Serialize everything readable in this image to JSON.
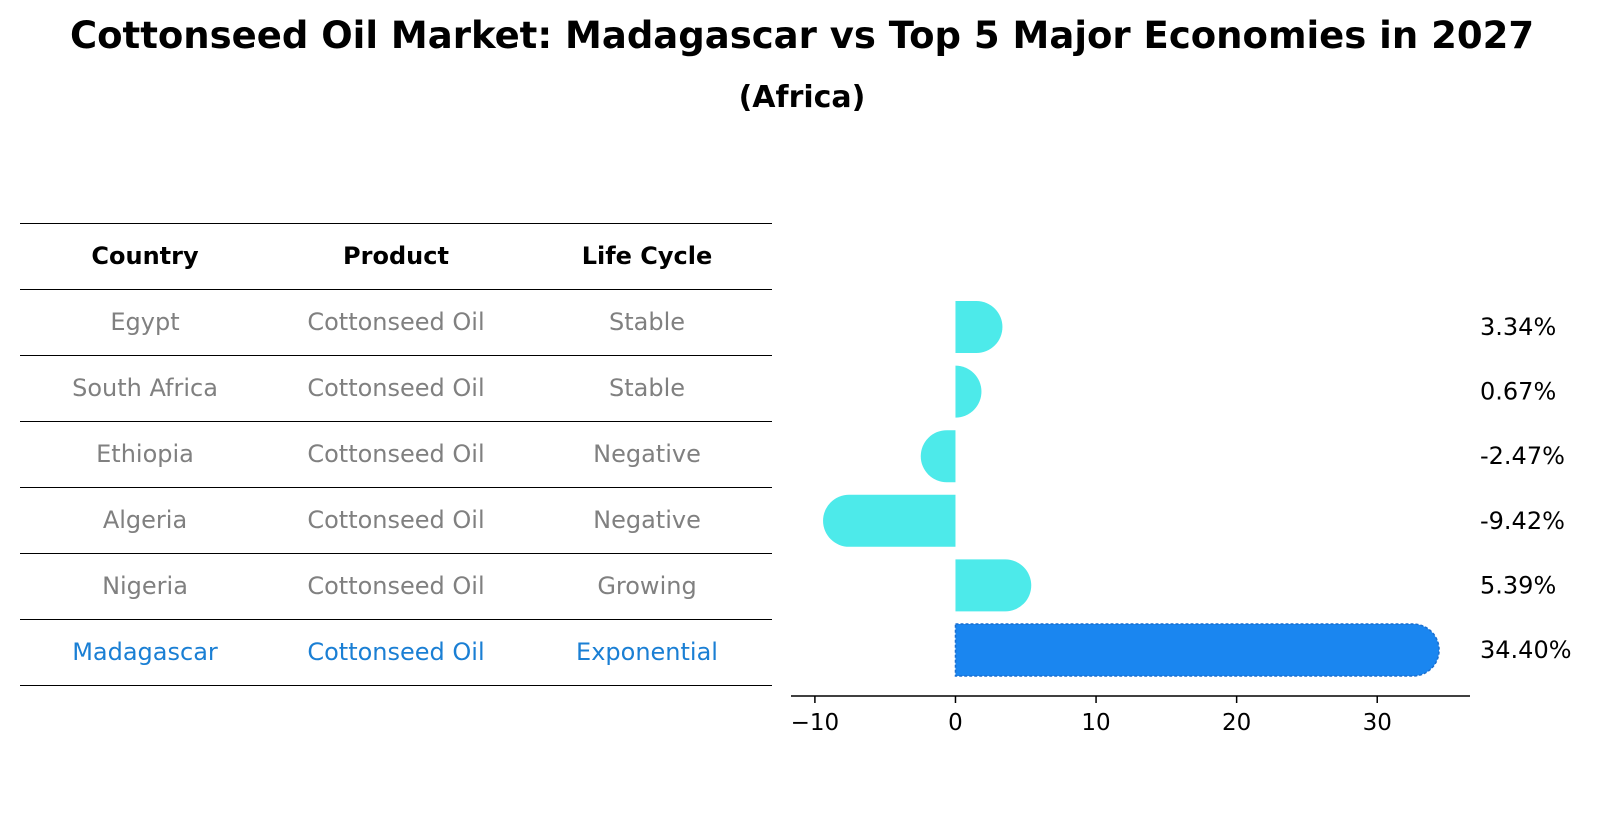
{
  "title": "Cottonseed Oil Market: Madagascar vs Top 5 Major Economies in 2027",
  "subtitle": "(Africa)",
  "table": {
    "headers": [
      "Country",
      "Product",
      "Life Cycle"
    ],
    "rows": [
      {
        "country": "Egypt",
        "product": "Cottonseed Oil",
        "life_cycle": "Stable"
      },
      {
        "country": "South Africa",
        "product": "Cottonseed Oil",
        "life_cycle": "Stable"
      },
      {
        "country": "Ethiopia",
        "product": "Cottonseed Oil",
        "life_cycle": "Negative"
      },
      {
        "country": "Algeria",
        "product": "Cottonseed Oil",
        "life_cycle": "Negative"
      },
      {
        "country": "Nigeria",
        "product": "Cottonseed Oil",
        "life_cycle": "Growing"
      },
      {
        "country": "Madagascar",
        "product": "Cottonseed Oil",
        "life_cycle": "Exponential"
      }
    ]
  },
  "colors": {
    "bar": "#4deaea",
    "highlight_bar": "#1a86f0",
    "highlight_text": "#1a7fd4",
    "muted_text": "#808080"
  },
  "chart_data": {
    "type": "bar",
    "orientation": "horizontal",
    "categories": [
      "Egypt",
      "South Africa",
      "Ethiopia",
      "Algeria",
      "Nigeria",
      "Madagascar"
    ],
    "values": [
      3.34,
      0.67,
      -2.47,
      -9.42,
      5.39,
      34.4
    ],
    "value_labels": [
      "3.34%",
      "0.67%",
      "-2.47%",
      "-9.42%",
      "5.39%",
      "34.40%"
    ],
    "highlight_index": 5,
    "xlim": [
      -11.7,
      36.6
    ],
    "xticks": [
      -10,
      0,
      10,
      20,
      30
    ],
    "xtick_labels": [
      "−10",
      "0",
      "10",
      "20",
      "30"
    ],
    "grid": false
  }
}
